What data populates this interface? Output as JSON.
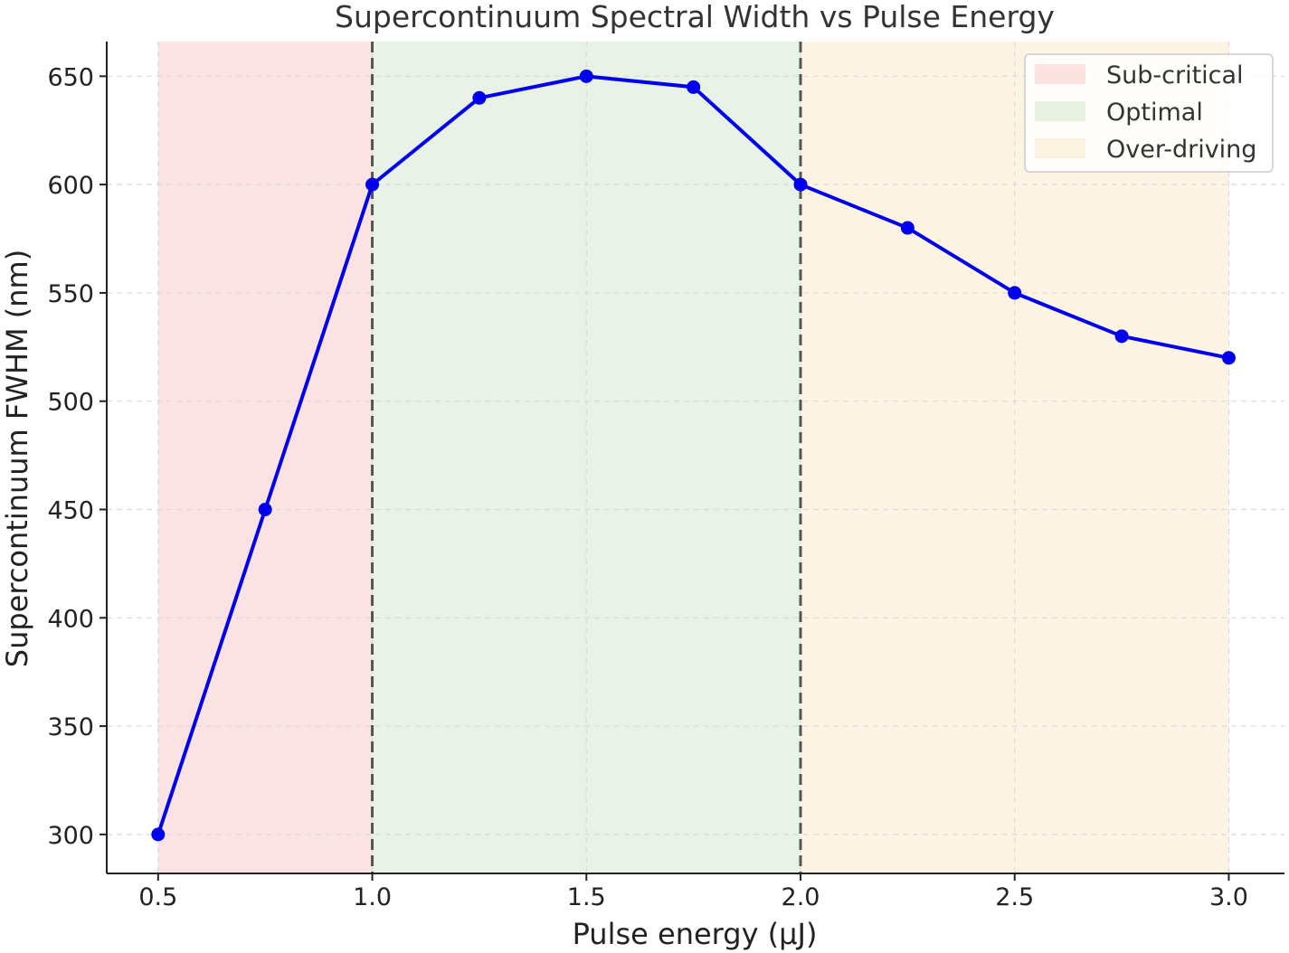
{
  "chart_data": {
    "type": "line",
    "title": "Supercontinuum Spectral Width vs Pulse Energy",
    "xlabel": "Pulse energy (μJ)",
    "ylabel": "Supercontinuum FWHM (nm)",
    "xlim": [
      0.38,
      3.13
    ],
    "ylim": [
      282,
      666
    ],
    "x_ticks": [
      0.5,
      1.0,
      1.5,
      2.0,
      2.5,
      3.0
    ],
    "x_tick_labels": [
      "0.5",
      "1.0",
      "1.5",
      "2.0",
      "2.5",
      "3.0"
    ],
    "y_ticks": [
      300,
      350,
      400,
      450,
      500,
      550,
      600,
      650
    ],
    "y_tick_labels": [
      "300",
      "350",
      "400",
      "450",
      "500",
      "550",
      "600",
      "650"
    ],
    "grid": true,
    "series": [
      {
        "color": "#0000ee",
        "marker": "circle",
        "x": [
          0.5,
          0.75,
          1.0,
          1.25,
          1.5,
          1.75,
          2.0,
          2.25,
          2.5,
          2.75,
          3.0
        ],
        "y": [
          300,
          450,
          600,
          640,
          650,
          645,
          600,
          580,
          550,
          530,
          520
        ]
      }
    ],
    "regions": [
      {
        "name": "Sub-critical",
        "x_start": 0.5,
        "x_end": 1.0,
        "color": "#f9c0c0"
      },
      {
        "name": "Optimal",
        "x_start": 1.0,
        "x_end": 2.0,
        "color": "#cfe3c8"
      },
      {
        "name": "Over-driving",
        "x_start": 2.0,
        "x_end": 3.0,
        "color": "#fbe7c4"
      }
    ],
    "vertical_lines": [
      {
        "x": 1.0,
        "color": "#555555",
        "style": "dashed"
      },
      {
        "x": 2.0,
        "color": "#555555",
        "style": "dashed"
      }
    ],
    "legend": {
      "placement": "top-right",
      "entries": [
        "Sub-critical",
        "Optimal",
        "Over-driving"
      ]
    }
  }
}
